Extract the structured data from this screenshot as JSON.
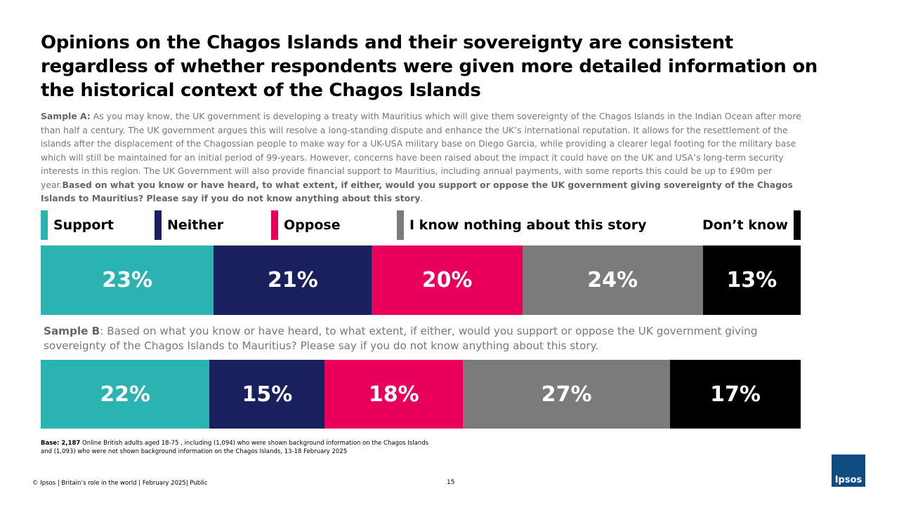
{
  "chart_data": {
    "type": "bar",
    "orientation": "horizontal",
    "stacked": true,
    "title": "Opinions on the Chagos Islands and their sovereignty are consistent regardless of whether respondents were given more detailed information on the historical context of the Chagos Islands",
    "categories": [
      "Sample A:",
      "Sample B"
    ],
    "category_text": [
      [
        {
          "text": "As you may know, the UK government is developing a treaty with Mauritius which will give them sovereignty of the Chagos Islands in the Indian Ocean after more than half a century. The UK government argues this will resolve a long-standing dispute and enhance the UK’s international reputation. It allows for the resettlement of the islands after the displacement of the Chagossian people to make way for a UK-USA military base on Diego Garcia, while providing a clearer legal footing for the military base which will still be maintained for an initial period of 99-years. However, concerns have been raised about the impact it could have on the UK and USA’s long-term security interests in this region. The UK Government will also provide financial support to Mauritius, including annual payments, with some reports this could be up to £90m per year.",
          "bold": false
        },
        {
          "text": "Based on what you know or have heard, to what extent, if either, would you support or oppose the UK government giving sovereignty of the Chagos Islands to Mauritius? Please say if you do not know anything about this story",
          "bold": true
        },
        {
          "text": ".",
          "bold": false
        }
      ],
      [
        {
          "text": ": Based on what you know or have heard, to what extent, if either, would you support or oppose the UK government giving sovereignty of the Chagos Islands to Mauritius? Please say if you do not know anything about this story.",
          "bold": false
        }
      ]
    ],
    "series": [
      {
        "name": "Support",
        "color": "#2bb3b1",
        "values": [
          23,
          22
        ],
        "value_labels": [
          "23%",
          "22%"
        ]
      },
      {
        "name": "Neither",
        "color": "#1a1f5e",
        "values": [
          21,
          15
        ],
        "value_labels": [
          "21%",
          "15%"
        ]
      },
      {
        "name": "Oppose",
        "color": "#e8005a",
        "values": [
          20,
          18
        ],
        "value_labels": [
          "20%",
          "18%"
        ]
      },
      {
        "name": "I know nothing about this story",
        "color": "#7b7b7b",
        "values": [
          24,
          27
        ],
        "value_labels": [
          "24%",
          "27%"
        ]
      },
      {
        "name": "Don’t know",
        "color": "#000000",
        "values": [
          13,
          17
        ],
        "value_labels": [
          "13%",
          "17%"
        ]
      }
    ],
    "legend": "top"
  },
  "footer": {
    "base_label": "Base: 2,187",
    "base_text": "Online British adults aged 18-75 , including (1,094) who were shown background information on the Chagos Islands and (1,093) who were not shown background information on the Chagos Islands, 13-18 February 2025",
    "source": "© Ipsos | Britain’s role in the world | February 2025| Public",
    "page": 15,
    "logo": "Ipsos"
  }
}
